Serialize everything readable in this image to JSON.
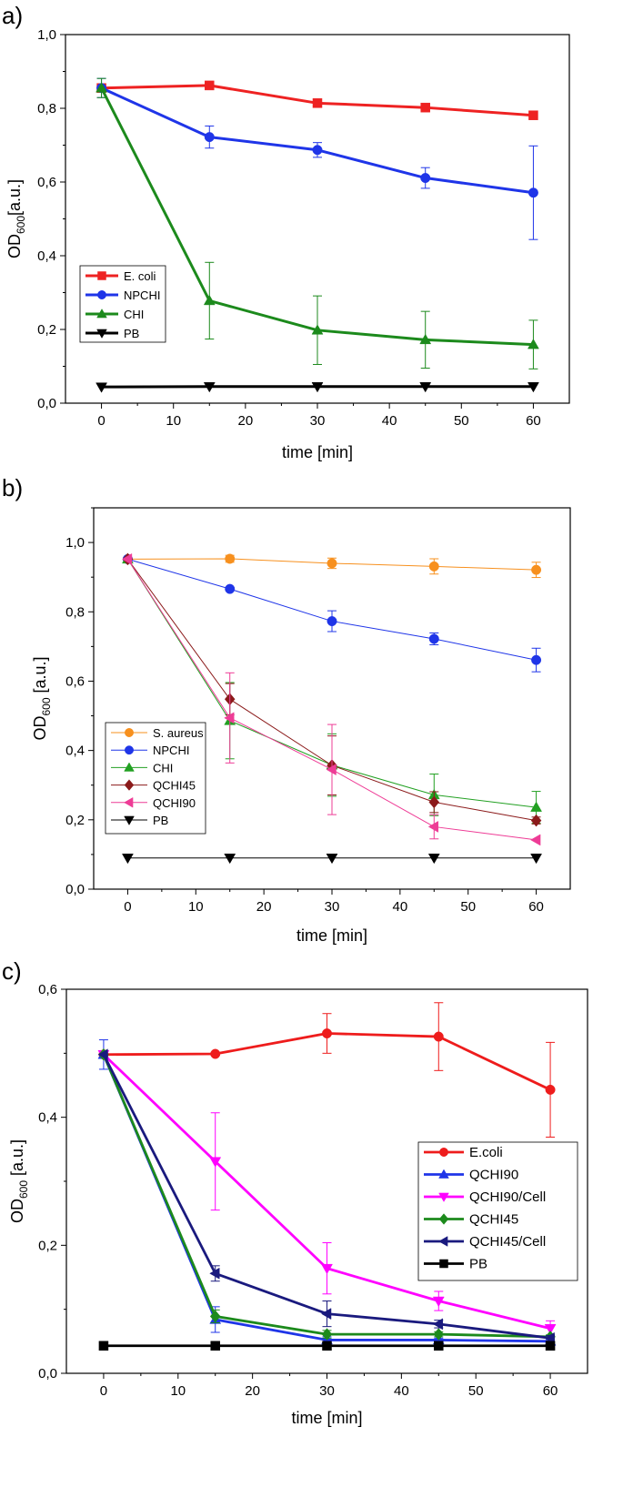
{
  "chart_data": [
    {
      "type": "line",
      "panel_label": "a)",
      "xlabel": "time [min]",
      "ylabel_main": "OD",
      "ylabel_sub": "600",
      "ylabel_unit": "[a.u.]",
      "xlim": [
        -5,
        65
      ],
      "ylim": [
        0,
        1.0
      ],
      "xticks": [
        0,
        10,
        20,
        30,
        40,
        50,
        60
      ],
      "xtick_labels": [
        "0",
        "10",
        "20",
        "30",
        "40",
        "50",
        "60"
      ],
      "yticks": [
        0,
        0.2,
        0.4,
        0.6,
        0.8,
        1.0
      ],
      "ytick_labels": [
        "0,0",
        "0,2",
        "0,4",
        "0,6",
        "0,8",
        "1,0"
      ],
      "legend_position": "lower-left",
      "series": [
        {
          "name": "E. coli",
          "color": "#ee2222",
          "marker": "square",
          "x": [
            0,
            15,
            30,
            45,
            60
          ],
          "y": [
            0.855,
            0.862,
            0.814,
            0.802,
            0.781
          ],
          "err": [
            0,
            0,
            0,
            0,
            0
          ]
        },
        {
          "name": "NPCHI",
          "color": "#1f35e8",
          "marker": "circle",
          "x": [
            0,
            15,
            30,
            45,
            60
          ],
          "y": [
            0.855,
            0.722,
            0.687,
            0.611,
            0.571
          ],
          "err": [
            0.026,
            0.03,
            0.02,
            0.028,
            0.127
          ]
        },
        {
          "name": "CHI",
          "color": "#1c8a1c",
          "marker": "triangle-up",
          "x": [
            0,
            15,
            30,
            45,
            60
          ],
          "y": [
            0.855,
            0.278,
            0.198,
            0.172,
            0.159
          ],
          "err": [
            0.026,
            0.104,
            0.093,
            0.077,
            0.066
          ]
        },
        {
          "name": "PB",
          "color": "#000000",
          "marker": "triangle-down",
          "x": [
            0,
            15,
            30,
            45,
            60
          ],
          "y": [
            0.044,
            0.045,
            0.045,
            0.045,
            0.045
          ],
          "err": [
            0,
            0,
            0,
            0,
            0
          ]
        }
      ]
    },
    {
      "type": "line",
      "panel_label": "b)",
      "xlabel": "time [min]",
      "ylabel_main": "OD",
      "ylabel_sub": "600",
      "ylabel_unit": " [a.u.]",
      "xlim": [
        -5,
        65
      ],
      "ylim": [
        0,
        1.1
      ],
      "xticks": [
        0,
        10,
        20,
        30,
        40,
        50,
        60
      ],
      "xtick_labels": [
        "0",
        "10",
        "20",
        "30",
        "40",
        "50",
        "60"
      ],
      "yticks": [
        0,
        0.2,
        0.4,
        0.6,
        0.8,
        1.0
      ],
      "ytick_labels": [
        "0,0",
        "0,2",
        "0,4",
        "0,6",
        "0,8",
        "1,0"
      ],
      "legend_position": "lower-left",
      "series": [
        {
          "name": "S. aureus",
          "color": "#f7901e",
          "marker": "circle",
          "x": [
            0,
            15,
            30,
            45,
            60
          ],
          "y": [
            0.952,
            0.953,
            0.94,
            0.931,
            0.921
          ],
          "err": [
            0,
            0.01,
            0.015,
            0.022,
            0.022
          ]
        },
        {
          "name": "NPCHI",
          "color": "#1f35e8",
          "marker": "circle",
          "x": [
            0,
            15,
            30,
            45,
            60
          ],
          "y": [
            0.952,
            0.866,
            0.773,
            0.722,
            0.661
          ],
          "err": [
            0,
            0,
            0.03,
            0.017,
            0.034
          ]
        },
        {
          "name": "CHI",
          "color": "#22a022",
          "marker": "triangle-up",
          "x": [
            0,
            15,
            30,
            45,
            60
          ],
          "y": [
            0.952,
            0.486,
            0.358,
            0.272,
            0.236
          ],
          "err": [
            0,
            0.11,
            0.09,
            0.06,
            0.046
          ]
        },
        {
          "name": "QCHI45",
          "color": "#8b1a1a",
          "marker": "diamond",
          "x": [
            0,
            15,
            30,
            45,
            60
          ],
          "y": [
            0.952,
            0.548,
            0.357,
            0.251,
            0.198
          ],
          "err": [
            0,
            0.045,
            0.085,
            0.03,
            0.01
          ]
        },
        {
          "name": "QCHI90",
          "color": "#ee3c96",
          "marker": "triangle-left",
          "x": [
            0,
            15,
            30,
            45,
            60
          ],
          "y": [
            0.952,
            0.494,
            0.345,
            0.18,
            0.142
          ],
          "err": [
            0,
            0.13,
            0.13,
            0.035,
            0
          ]
        },
        {
          "name": "PB",
          "color": "#000000",
          "marker": "triangle-down",
          "x": [
            0,
            15,
            30,
            45,
            60
          ],
          "y": [
            0.09,
            0.09,
            0.09,
            0.09,
            0.09
          ],
          "err": [
            0,
            0,
            0,
            0,
            0
          ]
        }
      ]
    },
    {
      "type": "line",
      "panel_label": "c)",
      "xlabel": "time [min]",
      "ylabel_main": "OD",
      "ylabel_sub": "600",
      "ylabel_unit": " [a.u.]",
      "xlim": [
        -5,
        65
      ],
      "ylim": [
        0,
        0.6
      ],
      "xticks": [
        0,
        10,
        20,
        30,
        40,
        50,
        60
      ],
      "xtick_labels": [
        "0",
        "10",
        "20",
        "30",
        "40",
        "50",
        "60"
      ],
      "yticks": [
        0,
        0.2,
        0.4,
        0.6
      ],
      "ytick_labels": [
        "0,0",
        "0,2",
        "0,4",
        "0,6"
      ],
      "legend_position": "lower-right",
      "series": [
        {
          "name": "E.coli",
          "color": "#ee1c1c",
          "marker": "circle",
          "x": [
            0,
            15,
            30,
            45,
            60
          ],
          "y": [
            0.498,
            0.499,
            0.531,
            0.526,
            0.443
          ],
          "err": [
            0,
            0,
            0.031,
            0.053,
            0.074
          ]
        },
        {
          "name": "QCHI90",
          "color": "#1f35e8",
          "marker": "triangle-up",
          "x": [
            0,
            15,
            30,
            45,
            60
          ],
          "y": [
            0.498,
            0.084,
            0.052,
            0.052,
            0.05
          ],
          "err": [
            0.023,
            0.02,
            0.005,
            0.003,
            0.003
          ]
        },
        {
          "name": "QCHI90/Cell",
          "color": "#ff00ff",
          "marker": "triangle-down",
          "x": [
            0,
            15,
            30,
            45,
            60
          ],
          "y": [
            0.498,
            0.331,
            0.164,
            0.113,
            0.07
          ],
          "err": [
            0,
            0.076,
            0.04,
            0.015,
            0.012
          ]
        },
        {
          "name": "QCHI45",
          "color": "#1c8a1c",
          "marker": "diamond",
          "x": [
            0,
            15,
            30,
            45,
            60
          ],
          "y": [
            0.498,
            0.089,
            0.061,
            0.061,
            0.057
          ],
          "err": [
            0,
            0.01,
            0.006,
            0.004,
            0.003
          ]
        },
        {
          "name": "QCHI45/Cell",
          "color": "#1a1a7e",
          "marker": "triangle-left",
          "x": [
            0,
            15,
            30,
            45,
            60
          ],
          "y": [
            0.498,
            0.156,
            0.093,
            0.077,
            0.055
          ],
          "err": [
            0,
            0.012,
            0.02,
            0.006,
            0.004
          ]
        },
        {
          "name": "PB",
          "color": "#000000",
          "marker": "square",
          "x": [
            0,
            15,
            30,
            45,
            60
          ],
          "y": [
            0.043,
            0.043,
            0.043,
            0.043,
            0.043
          ],
          "err": [
            0,
            0,
            0,
            0,
            0
          ]
        }
      ]
    }
  ]
}
